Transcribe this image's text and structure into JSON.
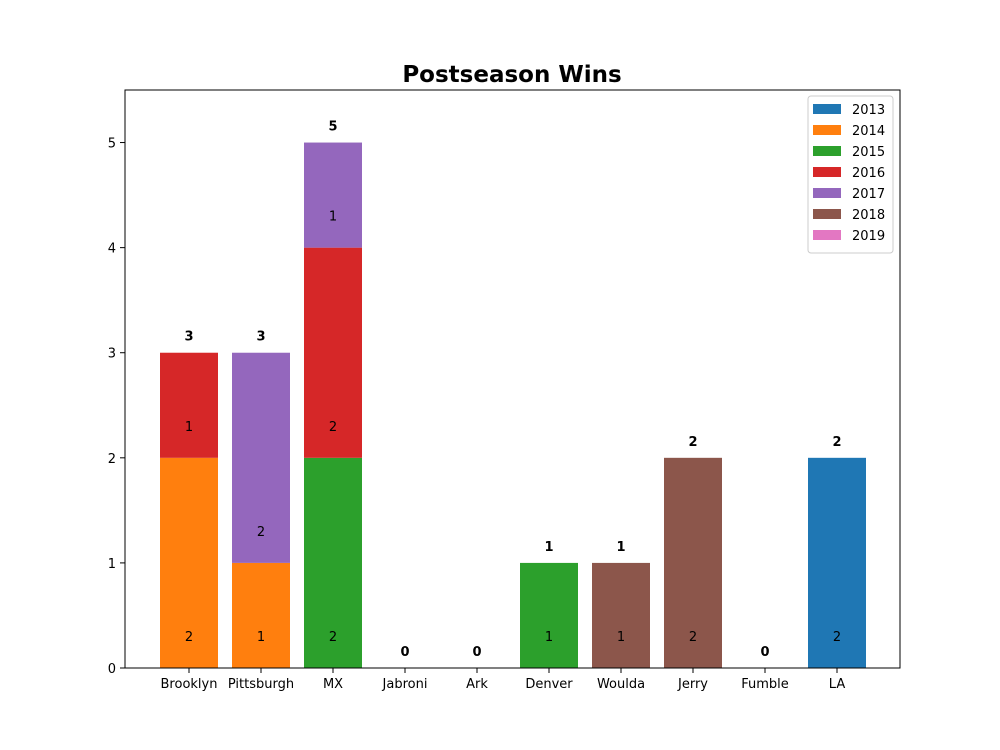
{
  "chart_data": {
    "type": "bar",
    "stacked": true,
    "title": "Postseason Wins",
    "xlabel": "",
    "ylabel": "",
    "ylim": [
      0,
      5.5
    ],
    "yticks": [
      0,
      1,
      2,
      3,
      4,
      5
    ],
    "grid": false,
    "legend_position": "top-right",
    "categories": [
      "Brooklyn",
      "Pittsburgh",
      "MX",
      "Jabroni",
      "Ark",
      "Denver",
      "Woulda",
      "Jerry",
      "Fumble",
      "LA"
    ],
    "series": [
      {
        "name": "2013",
        "color": "#1f77b4",
        "values": [
          0,
          0,
          0,
          0,
          0,
          0,
          0,
          0,
          0,
          2
        ]
      },
      {
        "name": "2014",
        "color": "#ff7f0e",
        "values": [
          2,
          1,
          0,
          0,
          0,
          0,
          0,
          0,
          0,
          0
        ]
      },
      {
        "name": "2015",
        "color": "#2ca02c",
        "values": [
          0,
          0,
          2,
          0,
          0,
          1,
          0,
          0,
          0,
          0
        ]
      },
      {
        "name": "2016",
        "color": "#d62728",
        "values": [
          1,
          0,
          2,
          0,
          0,
          0,
          0,
          0,
          0,
          0
        ]
      },
      {
        "name": "2017",
        "color": "#9467bd",
        "values": [
          0,
          2,
          1,
          0,
          0,
          0,
          0,
          0,
          0,
          0
        ]
      },
      {
        "name": "2018",
        "color": "#8c564b",
        "values": [
          0,
          0,
          0,
          0,
          0,
          0,
          1,
          2,
          0,
          0
        ]
      },
      {
        "name": "2019",
        "color": "#e377c2",
        "values": [
          0,
          0,
          0,
          0,
          0,
          0,
          0,
          0,
          0,
          0
        ]
      }
    ],
    "totals": [
      3,
      3,
      5,
      0,
      0,
      1,
      1,
      2,
      0,
      2
    ]
  }
}
